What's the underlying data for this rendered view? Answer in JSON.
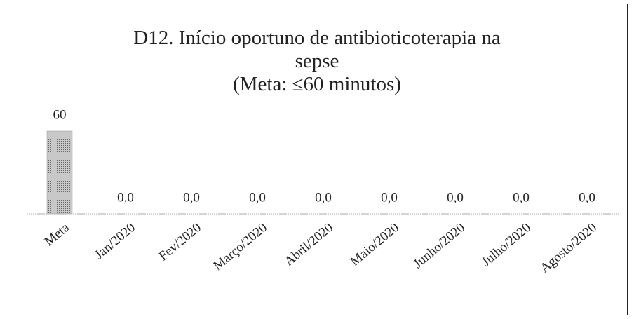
{
  "chart_data": {
    "type": "bar",
    "title": "D12. Início oportuno de antibioticoterapia na sepse",
    "subtitle": "(Meta: ≤60 minutos)",
    "categories": [
      "Meta",
      "Jan/2020",
      "Fev/2020",
      "Março/2020",
      "Abril/2020",
      "Maio/2020",
      "Junho/2020",
      "Julho/2020",
      "Agosto/2020"
    ],
    "values": [
      60,
      0,
      0,
      0,
      0,
      0,
      0,
      0,
      0
    ],
    "value_labels": [
      "60",
      "0,0",
      "0,0",
      "0,0",
      "0,0",
      "0,0",
      "0,0",
      "0,0",
      "0,0"
    ],
    "color": "#b4b4b4"
  }
}
